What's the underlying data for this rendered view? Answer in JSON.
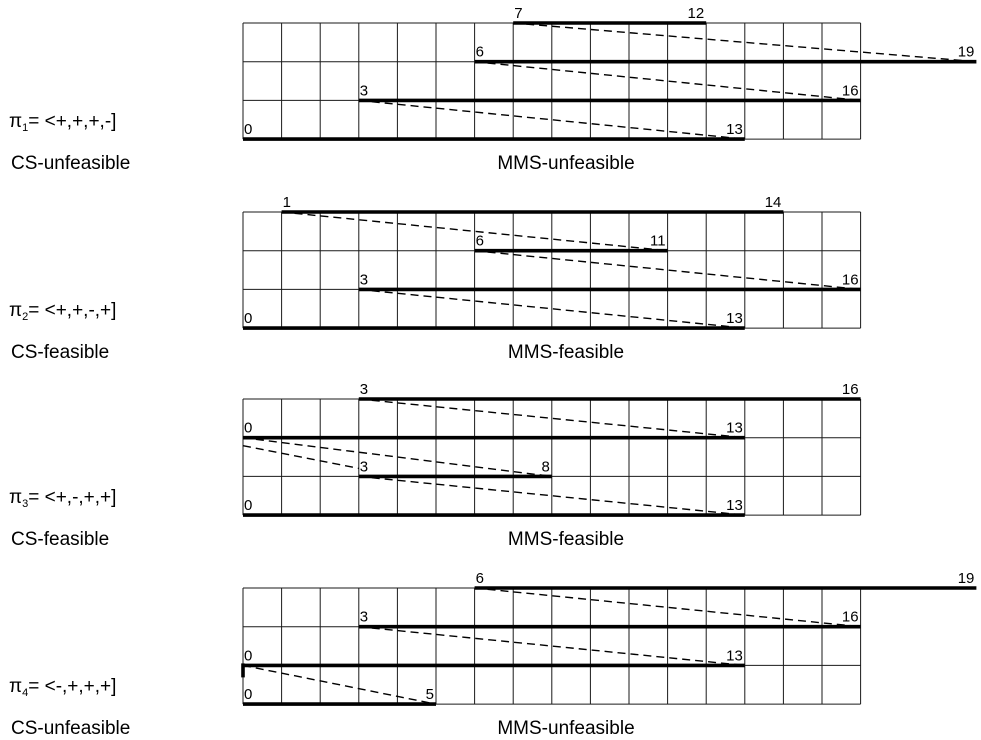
{
  "panels": [
    {
      "pi_main": "π",
      "pi_sub": "1",
      "pi_expr": "= <+,+,+,-]",
      "cs_label": "CS-unfeasible",
      "mms_label": "MMS-unfeasible",
      "intervals": [
        {
          "start": 0,
          "end": 13,
          "start_label": "0",
          "end_label": "13"
        },
        {
          "start": 3,
          "end": 16,
          "start_label": "3",
          "end_label": "16"
        },
        {
          "start": 6,
          "end": 19,
          "start_label": "6",
          "end_label": "19"
        },
        {
          "start": 7,
          "end": 12,
          "start_label": "7",
          "end_label": "12"
        }
      ]
    },
    {
      "pi_main": "π",
      "pi_sub": "2",
      "pi_expr": "= <+,+,-,+]",
      "cs_label": "CS-feasible",
      "mms_label": "MMS-feasible",
      "intervals": [
        {
          "start": 0,
          "end": 13,
          "start_label": "0",
          "end_label": "13"
        },
        {
          "start": 3,
          "end": 16,
          "start_label": "3",
          "end_label": "16"
        },
        {
          "start": 6,
          "end": 11,
          "start_label": "6",
          "end_label": "11"
        },
        {
          "start": 1,
          "end": 14,
          "start_label": "1",
          "end_label": "14"
        }
      ]
    },
    {
      "pi_main": "π",
      "pi_sub": "3",
      "pi_expr": "= <+,-,+,+]",
      "cs_label": "CS-feasible",
      "mms_label": "MMS-feasible",
      "intervals": [
        {
          "start": 0,
          "end": 13,
          "start_label": "0",
          "end_label": "13"
        },
        {
          "start": 3,
          "end": 8,
          "start_label": "3",
          "end_label": "8"
        },
        {
          "start": 0,
          "end": 13,
          "start_label": "0",
          "end_label": "13"
        },
        {
          "start": 3,
          "end": 16,
          "start_label": "3",
          "end_label": "16"
        }
      ]
    },
    {
      "pi_main": "π",
      "pi_sub": "4",
      "pi_expr": "= <-,+,+,+]",
      "cs_label": "CS-unfeasible",
      "mms_label": "MMS-unfeasible",
      "intervals": [
        {
          "start": 0,
          "end": 5,
          "start_label": "0",
          "end_label": "5"
        },
        {
          "start": 0,
          "end": 13,
          "start_label": "0",
          "end_label": "13"
        },
        {
          "start": 3,
          "end": 16,
          "start_label": "3",
          "end_label": "16"
        },
        {
          "start": 6,
          "end": 19,
          "start_label": "6",
          "end_label": "19"
        }
      ]
    }
  ]
}
